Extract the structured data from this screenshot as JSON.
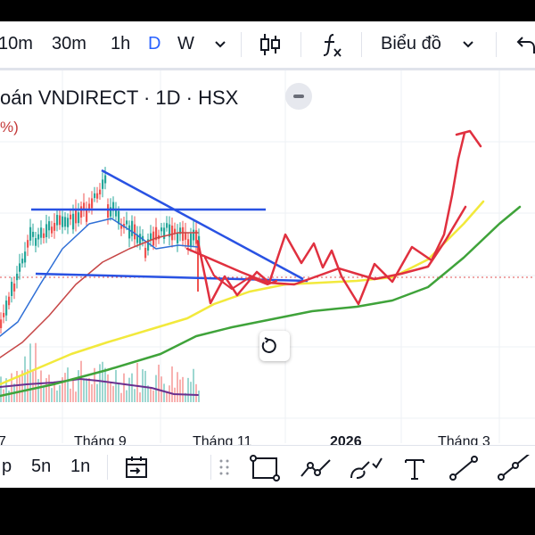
{
  "toolbar": {
    "intervals": [
      "10m",
      "30m",
      "1h",
      "D",
      "W"
    ],
    "active_interval": "D",
    "interval_dropdown_icon": "chevron-down-icon",
    "chart_type_icon": "candlestick-icon",
    "indicators_icon": "fx-icon",
    "layout_label": "Biểu đồ",
    "undo_icon": "undo-icon"
  },
  "legend": {
    "title": "oán VNDIRECT · 1D · HSX",
    "change_fragment": "%)",
    "change_color": "#c43a3a"
  },
  "time_axis": {
    "labels": [
      "7",
      "Tháng 9",
      "Tháng 11",
      "2026",
      "Tháng 3"
    ],
    "bold_label": "2026"
  },
  "bottom_bar": {
    "ranges": [
      "p",
      "5n",
      "1n"
    ],
    "goto_date_icon": "calendar-arrow-icon",
    "drag_handle_icon": "drag-handle-icon",
    "tools": [
      "rectangle-icon",
      "path-icon",
      "brush-icon",
      "text-icon",
      "line-icon",
      "ray-icon"
    ]
  },
  "colors": {
    "active": "#2962ff",
    "projection_red": "#e0303f",
    "trendline_blue": "#2952e3",
    "ma_yellow": "#f2e93c",
    "ma_green": "#3fa33a",
    "ma_red": "#c64646",
    "ma_blue": "#2f6fd6",
    "candle_up": "#26a69a",
    "candle_down": "#ef5350",
    "volume_ma": "#6a2f8f"
  },
  "reset_icon": "reset-icon"
}
